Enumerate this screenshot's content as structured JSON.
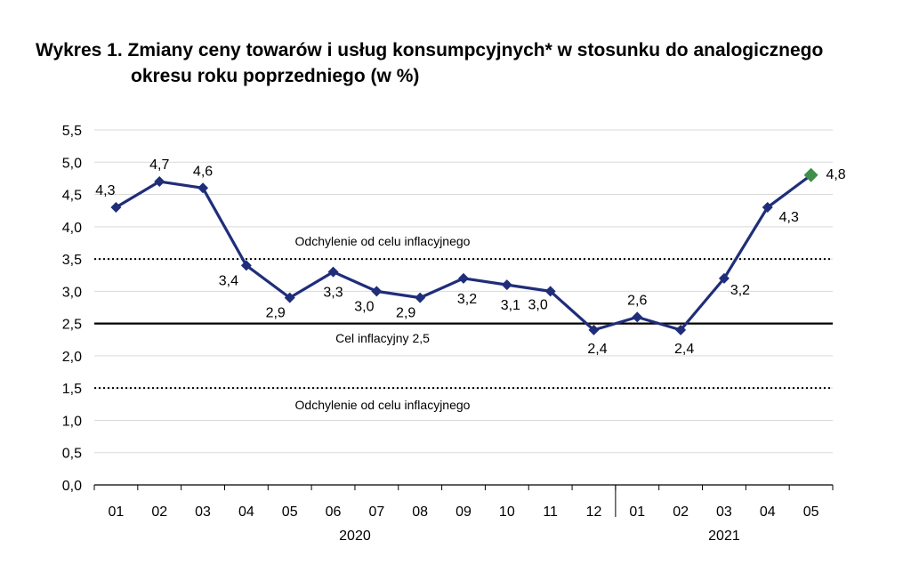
{
  "chart_data": {
    "type": "line",
    "title_line1": "Wykres 1. Zmiany ceny towarów i usług konsumpcyjnych* w stosunku do analogicznego",
    "title_line2": "okresu roku poprzedniego (w %)",
    "categories": [
      "01",
      "02",
      "03",
      "04",
      "05",
      "06",
      "07",
      "08",
      "09",
      "10",
      "11",
      "12",
      "01",
      "02",
      "03",
      "04",
      "05"
    ],
    "years": [
      {
        "label": "2020",
        "from": 0,
        "to": 11
      },
      {
        "label": "2021",
        "from": 12,
        "to": 16
      }
    ],
    "values": [
      4.3,
      4.7,
      4.6,
      3.4,
      2.9,
      3.3,
      3.0,
      2.9,
      3.2,
      3.1,
      3.0,
      2.4,
      2.6,
      2.4,
      3.2,
      4.3,
      4.8
    ],
    "data_labels": [
      "4,3",
      "4,7",
      "4,6",
      "3,4",
      "2,9",
      "3,3",
      "3,0",
      "2,9",
      "3,2",
      "3,1",
      "3,0",
      "2,4",
      "2,6",
      "2,4",
      "3,2",
      "4,3",
      "4,8"
    ],
    "ylim": [
      0,
      5.5
    ],
    "yticks": [
      0,
      0.5,
      1.0,
      1.5,
      2.0,
      2.5,
      3.0,
      3.5,
      4.0,
      4.5,
      5.0,
      5.5
    ],
    "ytick_labels": [
      "0,0",
      "0,5",
      "1,0",
      "1,5",
      "2,0",
      "2,5",
      "3,0",
      "3,5",
      "4,0",
      "4,5",
      "5,0",
      "5,5"
    ],
    "grid": true,
    "reference_lines": [
      {
        "value": 3.5,
        "style": "dotted",
        "label": "Odchylenie od celu inflacyjnego"
      },
      {
        "value": 2.5,
        "style": "solid",
        "label": "Cel inflacyjny 2,5"
      },
      {
        "value": 1.5,
        "style": "dotted",
        "label": "Odchylenie od celu inflacyjnego"
      }
    ],
    "colors": {
      "line": "#1f2d7a",
      "marker": "#1f2d7a",
      "highlight_marker": "#3f8f4a",
      "grid": "#d9d9d9",
      "reference": "#000000"
    }
  }
}
